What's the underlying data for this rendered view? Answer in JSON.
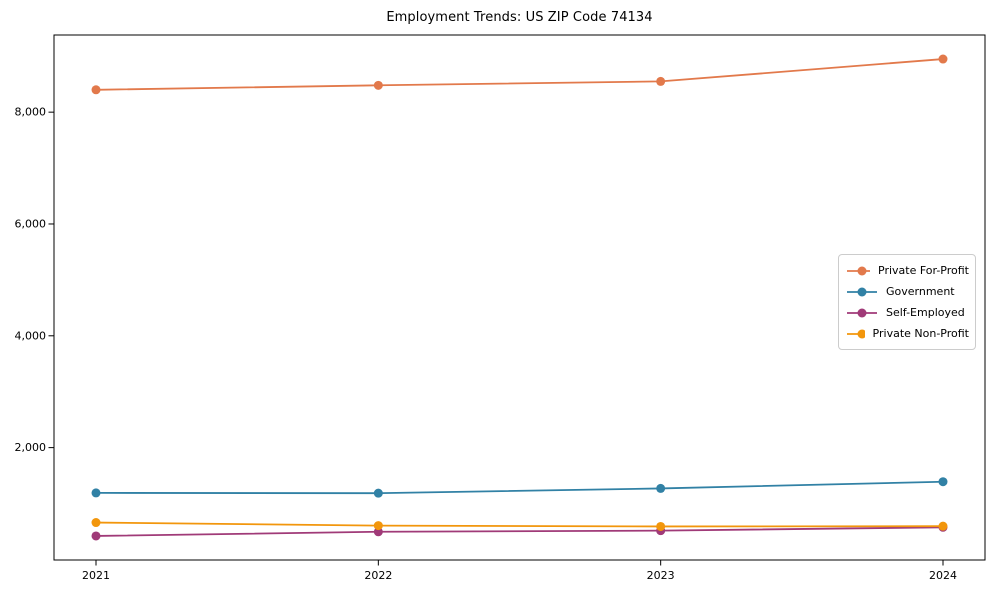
{
  "chart_data": {
    "type": "line",
    "title": "Employment Trends: US ZIP Code 74134",
    "x": [
      2021,
      2022,
      2023,
      2024
    ],
    "xtick_labels": [
      "2021",
      "2022",
      "2023",
      "2024"
    ],
    "yticks": [
      2000,
      4000,
      6000,
      8000
    ],
    "ytick_labels": [
      "2,000",
      "4,000",
      "6,000",
      "8,000"
    ],
    "ylim": [
      -10,
      9380
    ],
    "grid": false,
    "marker": "circle",
    "legend_position": "center-right",
    "series": [
      {
        "name": "Private For-Profit",
        "color": "#E2794B",
        "values": [
          8400,
          8480,
          8550,
          8950
        ]
      },
      {
        "name": "Government",
        "color": "#3181A5",
        "values": [
          1190,
          1185,
          1270,
          1390
        ]
      },
      {
        "name": "Self-Employed",
        "color": "#A03A78",
        "values": [
          420,
          495,
          515,
          575
        ]
      },
      {
        "name": "Private Non-Profit",
        "color": "#F2960C",
        "values": [
          660,
          605,
          590,
          595
        ]
      }
    ],
    "axis_color": "#000000",
    "background_color": "#ffffff"
  }
}
